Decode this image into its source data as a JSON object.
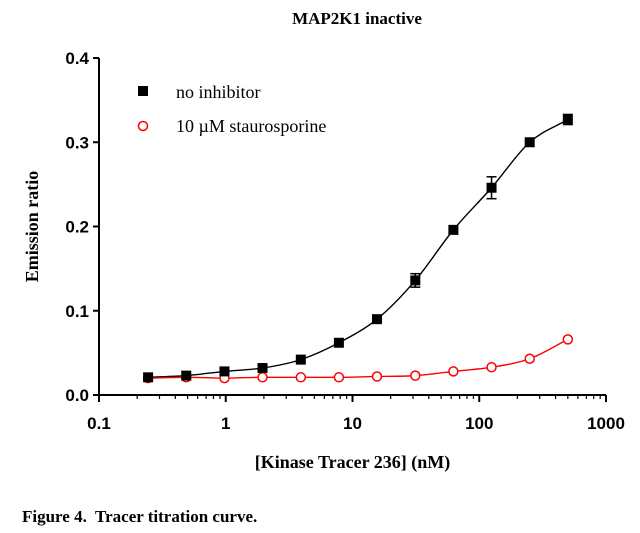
{
  "caption": "Figure 4.  Tracer titration curve.",
  "chart_data": {
    "type": "scatter",
    "title": "MAP2K1 inactive",
    "xlabel": "[Kinase Tracer 236] (nM)",
    "ylabel": "Emission ratio",
    "xscale": "log",
    "xlim": [
      0.1,
      1000
    ],
    "ylim": [
      0.0,
      0.4
    ],
    "xticks": [
      0.1,
      1,
      10,
      100,
      1000
    ],
    "xtick_labels": [
      "0.1",
      "1",
      "10",
      "100",
      "1000"
    ],
    "yticks": [
      0.0,
      0.1,
      0.2,
      0.3,
      0.4
    ],
    "ytick_labels": [
      "0.0",
      "0.1",
      "0.2",
      "0.3",
      "0.4"
    ],
    "legend_position": "top-left",
    "grid": false,
    "x": [
      0.244,
      0.488,
      0.977,
      1.95,
      3.91,
      7.81,
      15.6,
      31.3,
      62.5,
      125,
      250,
      500
    ],
    "series": [
      {
        "name": "no inhibitor",
        "marker": "filled-square",
        "color": "#000000",
        "values": [
          0.021,
          0.023,
          0.028,
          0.032,
          0.042,
          0.062,
          0.09,
          0.136,
          0.196,
          0.246,
          0.3,
          0.327
        ],
        "errors": [
          0.0,
          0.0,
          0.0,
          0.0,
          0.0,
          0.0,
          0.0,
          0.008,
          0.0,
          0.013,
          0.0,
          0.006
        ]
      },
      {
        "name": "10 µM staurosporine",
        "marker": "open-circle",
        "color": "#ff0000",
        "values": [
          0.02,
          0.021,
          0.02,
          0.021,
          0.021,
          0.021,
          0.022,
          0.023,
          0.028,
          0.033,
          0.043,
          0.066
        ],
        "errors": [
          0,
          0,
          0,
          0,
          0,
          0,
          0,
          0,
          0,
          0,
          0,
          0
        ]
      }
    ]
  }
}
